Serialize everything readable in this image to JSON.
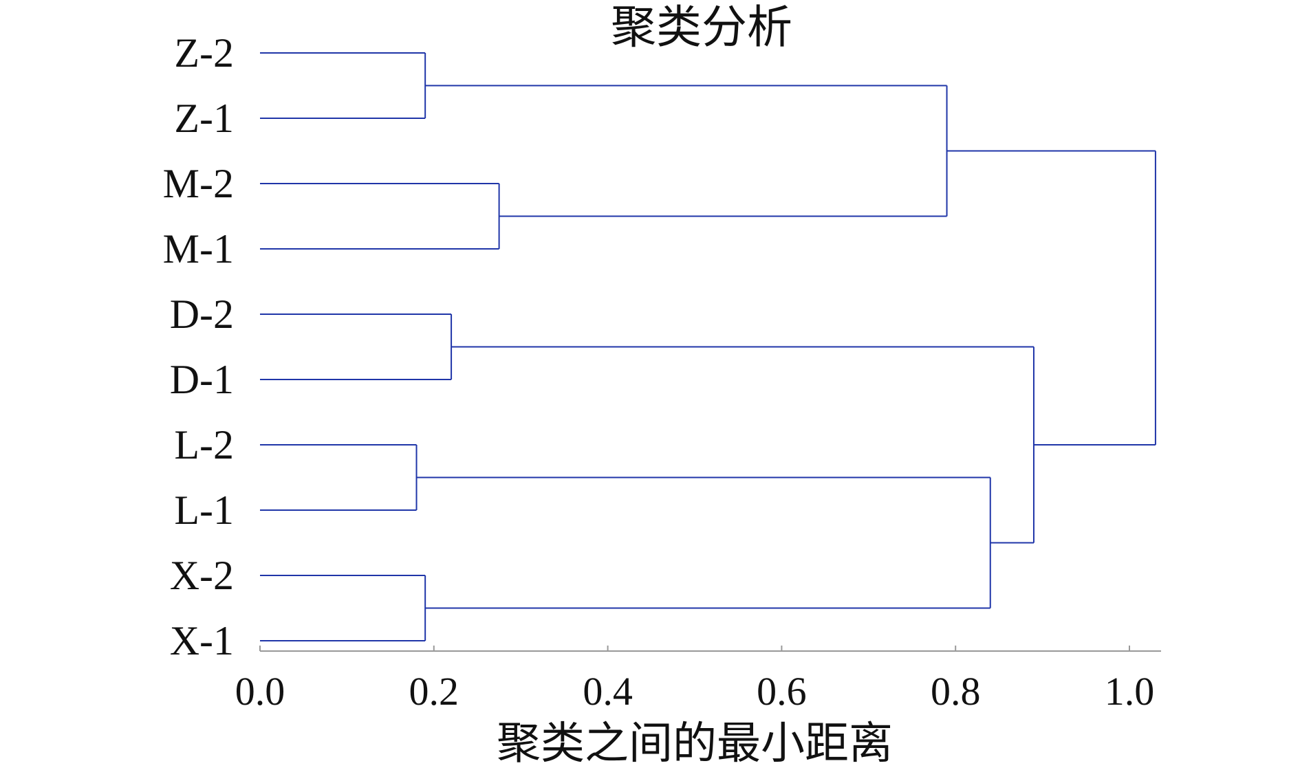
{
  "chart_data": {
    "type": "dendrogram",
    "title": "聚类分析",
    "xlabel": "聚类之间的最小距离",
    "ylabel": "",
    "xlim": [
      0.0,
      1.0
    ],
    "x_ticks": [
      {
        "value": 0.0,
        "label": "0.0"
      },
      {
        "value": 0.2,
        "label": "0.2"
      },
      {
        "value": 0.4,
        "label": "0.4"
      },
      {
        "value": 0.6,
        "label": "0.6"
      },
      {
        "value": 0.8,
        "label": "0.8"
      },
      {
        "value": 1.0,
        "label": "1.0"
      }
    ],
    "grid": false,
    "leaves": [
      "Z-2",
      "Z-1",
      "M-2",
      "M-1",
      "D-2",
      "D-1",
      "L-2",
      "L-1",
      "X-2",
      "X-1"
    ],
    "merges": [
      {
        "id": "C1",
        "left": "Z-2",
        "right": "Z-1",
        "distance": 0.19
      },
      {
        "id": "C2",
        "left": "M-2",
        "right": "M-1",
        "distance": 0.275
      },
      {
        "id": "C3",
        "left": "D-2",
        "right": "D-1",
        "distance": 0.22
      },
      {
        "id": "C4",
        "left": "L-2",
        "right": "L-1",
        "distance": 0.18
      },
      {
        "id": "C5",
        "left": "X-2",
        "right": "X-1",
        "distance": 0.19
      },
      {
        "id": "C6",
        "left": "C1",
        "right": "C2",
        "distance": 0.79
      },
      {
        "id": "C7",
        "left": "C4",
        "right": "C5",
        "distance": 0.84
      },
      {
        "id": "C8",
        "left": "C3",
        "right": "C7",
        "distance": 0.89
      },
      {
        "id": "C9",
        "left": "C6",
        "right": "C8",
        "distance": 1.03
      }
    ],
    "colors": {
      "branch": "#1f35a8",
      "axis": "#999999",
      "text": "#111111"
    }
  }
}
